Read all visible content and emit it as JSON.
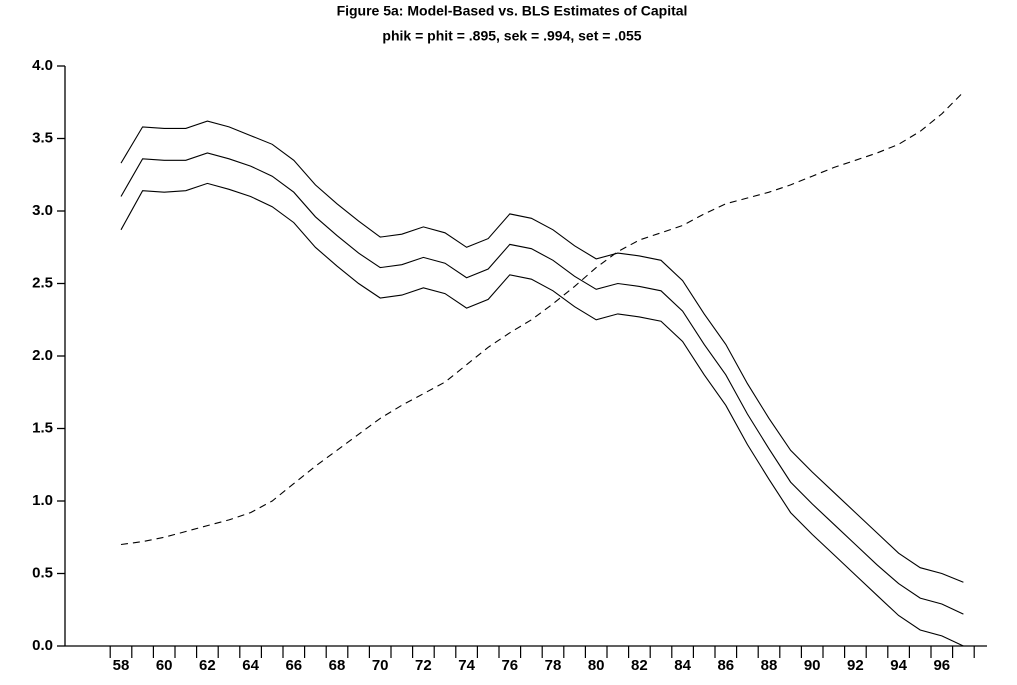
{
  "chart_data": {
    "type": "line",
    "title": "Figure 5a: Model-Based vs. BLS Estimates of Capital",
    "subtitle": "phik = phit = .895, sek = .994, set = .055",
    "categories": [
      "58",
      null,
      "60",
      null,
      "62",
      null,
      "64",
      null,
      "66",
      null,
      "68",
      null,
      "70",
      null,
      "72",
      null,
      "74",
      null,
      "76",
      null,
      "78",
      null,
      "80",
      null,
      "82",
      null,
      "84",
      null,
      "86",
      null,
      "88",
      null,
      "90",
      null,
      "92",
      null,
      "94",
      null,
      "96",
      null
    ],
    "series": [
      {
        "color": "#000000",
        "style": "solid",
        "values": [
          3.33,
          3.58,
          3.57,
          3.57,
          3.62,
          3.58,
          3.52,
          3.46,
          3.35,
          3.18,
          3.05,
          2.93,
          2.82,
          2.84,
          2.89,
          2.85,
          2.75,
          2.81,
          2.98,
          2.95,
          2.87,
          2.76,
          2.67,
          2.71,
          2.69,
          2.66,
          2.52,
          2.29,
          2.08,
          1.81,
          1.57,
          1.35,
          1.2,
          1.06,
          0.92,
          0.78,
          0.64,
          0.54,
          0.5,
          0.44
        ]
      },
      {
        "color": "#000000",
        "style": "solid",
        "values": [
          3.1,
          3.36,
          3.35,
          3.35,
          3.4,
          3.36,
          3.31,
          3.24,
          3.13,
          2.96,
          2.83,
          2.71,
          2.61,
          2.63,
          2.68,
          2.64,
          2.54,
          2.6,
          2.77,
          2.74,
          2.66,
          2.55,
          2.46,
          2.5,
          2.48,
          2.45,
          2.31,
          2.08,
          1.87,
          1.6,
          1.36,
          1.13,
          0.98,
          0.84,
          0.7,
          0.56,
          0.43,
          0.33,
          0.29,
          0.22
        ]
      },
      {
        "color": "#000000",
        "style": "solid",
        "values": [
          2.87,
          3.14,
          3.13,
          3.14,
          3.19,
          3.15,
          3.1,
          3.03,
          2.92,
          2.75,
          2.62,
          2.5,
          2.4,
          2.42,
          2.47,
          2.43,
          2.33,
          2.39,
          2.56,
          2.53,
          2.45,
          2.34,
          2.25,
          2.29,
          2.27,
          2.24,
          2.1,
          1.87,
          1.66,
          1.39,
          1.15,
          0.92,
          0.77,
          0.63,
          0.49,
          0.35,
          0.21,
          0.11,
          0.07,
          0.0
        ]
      },
      {
        "color": "#000000",
        "style": "dashed",
        "values": [
          0.7,
          0.72,
          0.75,
          0.79,
          0.83,
          0.87,
          0.92,
          1.0,
          1.12,
          1.24,
          1.35,
          1.46,
          1.57,
          1.66,
          1.74,
          1.82,
          1.94,
          2.06,
          2.16,
          2.25,
          2.36,
          2.48,
          2.61,
          2.72,
          2.8,
          2.85,
          2.9,
          2.98,
          3.05,
          3.09,
          3.13,
          3.18,
          3.24,
          3.3,
          3.35,
          3.4,
          3.46,
          3.55,
          3.67,
          3.82
        ]
      }
    ],
    "ylim": [
      0,
      4
    ],
    "yticks": [
      {
        "value": 0,
        "label": "0.0"
      },
      {
        "value": 0.5,
        "label": "0.5"
      },
      {
        "value": 1,
        "label": "1.0"
      },
      {
        "value": 1.5,
        "label": "1.5"
      },
      {
        "value": 2,
        "label": "2.0"
      },
      {
        "value": 2.5,
        "label": "2.5"
      },
      {
        "value": 3,
        "label": "3.0"
      },
      {
        "value": 3.5,
        "label": "3.5"
      },
      {
        "value": 4,
        "label": "4.0"
      }
    ],
    "grid": false
  }
}
